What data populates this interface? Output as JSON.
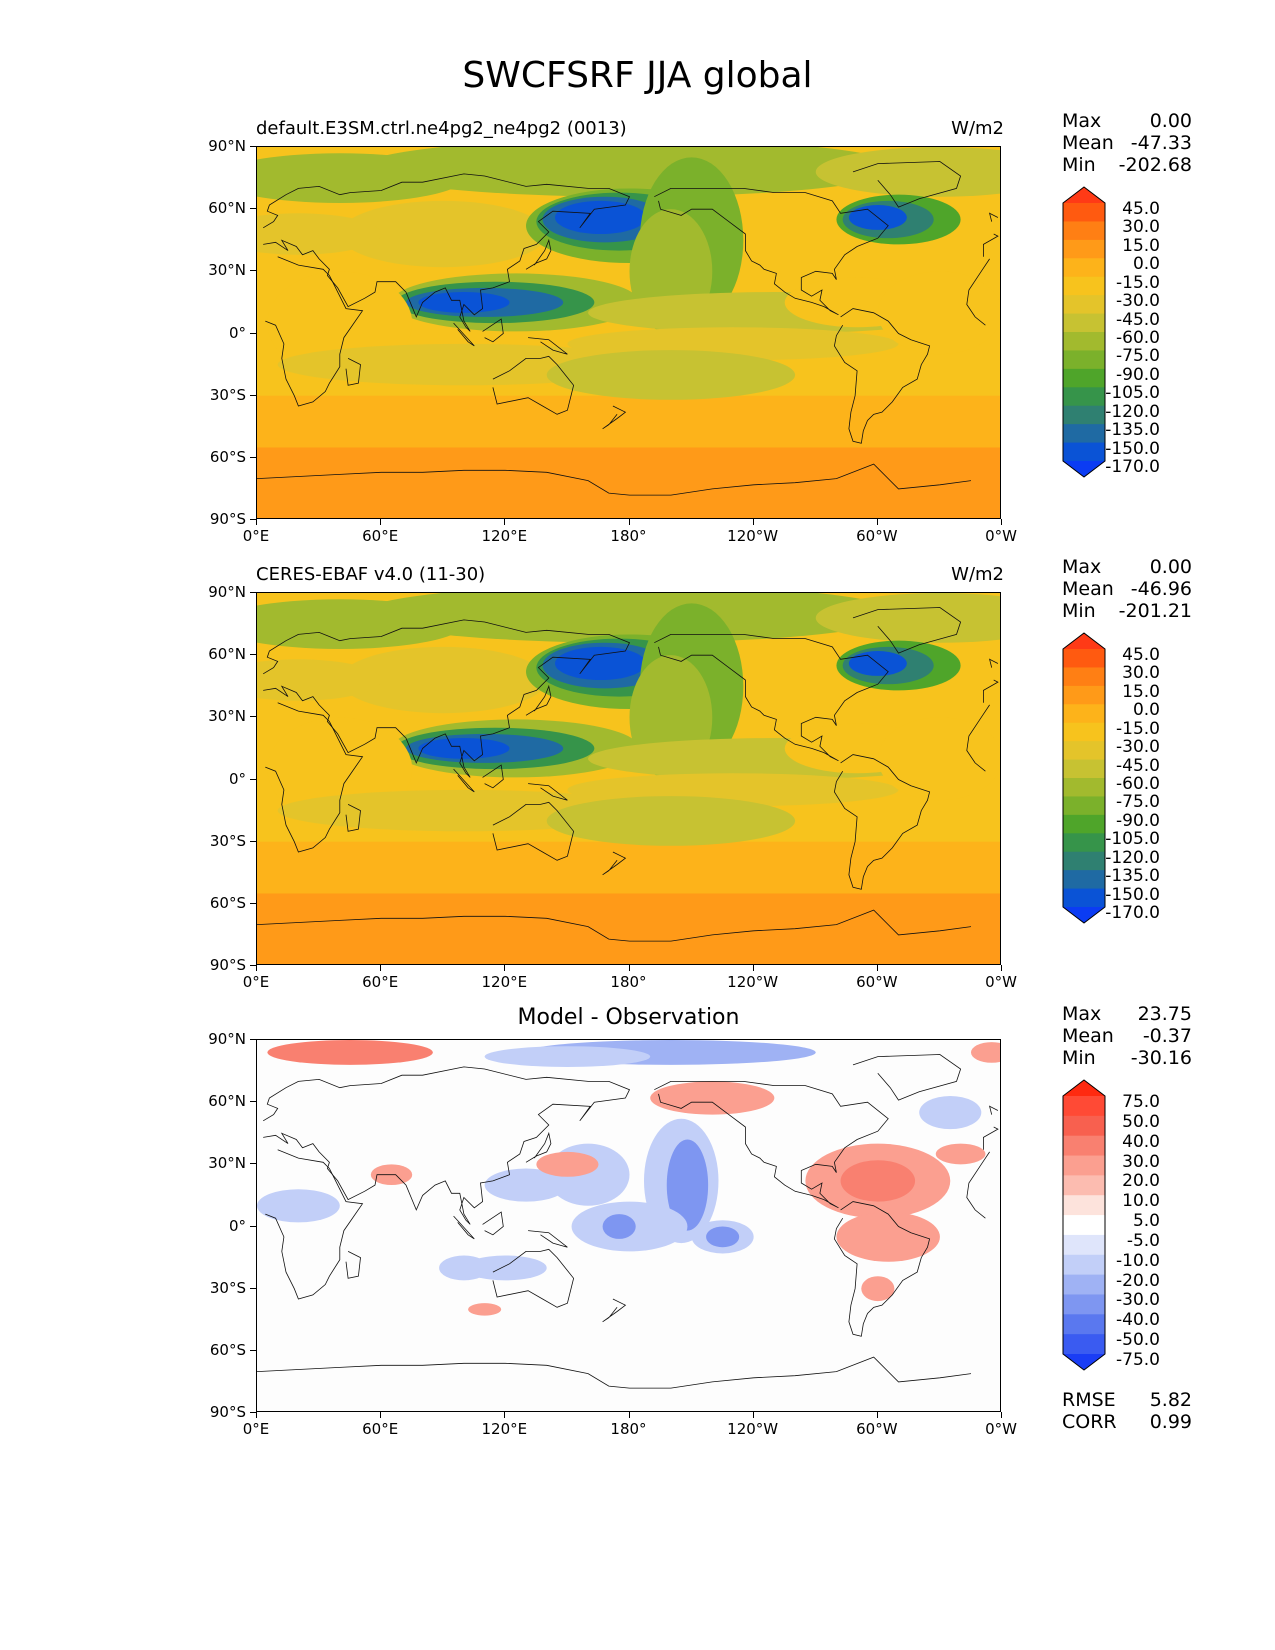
{
  "title": "SWCFSRF JJA global",
  "axes": {
    "lat_ticks": [
      "90°N",
      "60°N",
      "30°N",
      "0°",
      "30°S",
      "60°S",
      "90°S"
    ],
    "lon_ticks": [
      "0°E",
      "60°E",
      "120°E",
      "180°",
      "120°W",
      "60°W",
      "0°W"
    ]
  },
  "panels": [
    {
      "id": "model",
      "title_left": "default.E3SM.ctrl.ne4pg2_ne4pg2 (0013)",
      "title_right": "W/m2",
      "title_center": "",
      "stats": [
        {
          "label": "Max",
          "value": "0.00"
        },
        {
          "label": "Mean",
          "value": "-47.33"
        },
        {
          "label": "Min",
          "value": "-202.68"
        }
      ],
      "colorbar_labels": [
        "45.0",
        "30.0",
        "15.0",
        "0.0",
        "-15.0",
        "-30.0",
        "-45.0",
        "-60.0",
        "-75.0",
        "-90.0",
        "-105.0",
        "-120.0",
        "-135.0",
        "-150.0",
        "-170.0"
      ],
      "colorbar_colors": [
        "#ff3a16",
        "#ff5a10",
        "#ff7f14",
        "#ff9a18",
        "#fdb31a",
        "#f7c31d",
        "#e4c42a",
        "#c7c232",
        "#a2ba2e",
        "#7bb12b",
        "#4fa52a",
        "#36944a",
        "#2f8071",
        "#1f6aa3",
        "#0a53d6",
        "#0b3cf3"
      ]
    },
    {
      "id": "obs",
      "title_left": "CERES-EBAF v4.0 (11-30)",
      "title_right": "W/m2",
      "title_center": "",
      "stats": [
        {
          "label": "Max",
          "value": "0.00"
        },
        {
          "label": "Mean",
          "value": "-46.96"
        },
        {
          "label": "Min",
          "value": "-201.21"
        }
      ],
      "colorbar_labels": [
        "45.0",
        "30.0",
        "15.0",
        "0.0",
        "-15.0",
        "-30.0",
        "-45.0",
        "-60.0",
        "-75.0",
        "-90.0",
        "-105.0",
        "-120.0",
        "-135.0",
        "-150.0",
        "-170.0"
      ],
      "colorbar_colors": [
        "#ff3a16",
        "#ff5a10",
        "#ff7f14",
        "#ff9a18",
        "#fdb31a",
        "#f7c31d",
        "#e4c42a",
        "#c7c232",
        "#a2ba2e",
        "#7bb12b",
        "#4fa52a",
        "#36944a",
        "#2f8071",
        "#1f6aa3",
        "#0a53d6",
        "#0b3cf3"
      ]
    },
    {
      "id": "diff",
      "title_left": "",
      "title_right": "",
      "title_center": "Model - Observation",
      "stats": [
        {
          "label": "Max",
          "value": "23.75"
        },
        {
          "label": "Mean",
          "value": "-0.37"
        },
        {
          "label": "Min",
          "value": "-30.16"
        }
      ],
      "colorbar_labels": [
        "75.0",
        "50.0",
        "40.0",
        "30.0",
        "20.0",
        "10.0",
        "5.0",
        "-5.0",
        "-10.0",
        "-20.0",
        "-30.0",
        "-40.0",
        "-50.0",
        "-75.0"
      ],
      "colorbar_colors": [
        "#ff2a10",
        "#ff4a35",
        "#f8604f",
        "#f98070",
        "#fb9f90",
        "#fcbcb0",
        "#fde3dc",
        "#ffffff",
        "#dfe5fb",
        "#c2cff8",
        "#9fb2f4",
        "#7e96f1",
        "#5a78ef",
        "#3a5bf1",
        "#1a3df5"
      ],
      "rmse": {
        "label": "RMSE",
        "value": "5.82"
      },
      "corr": {
        "label": "CORR",
        "value": "0.99"
      }
    }
  ]
}
